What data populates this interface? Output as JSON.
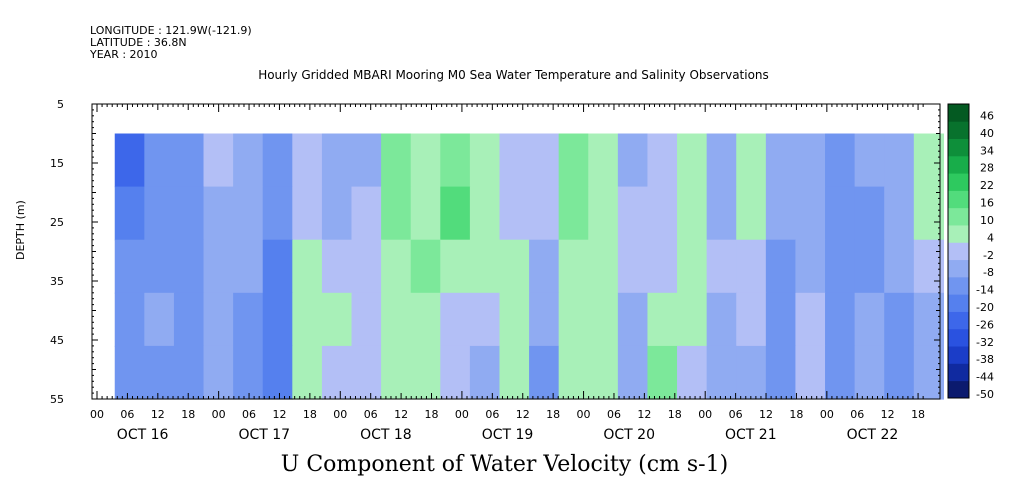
{
  "header": {
    "longitude": "LONGITUDE : 121.9W(-121.9)",
    "latitude": "LATITUDE : 36.8N",
    "year": "YEAR : 2010",
    "title": "Hourly Gridded MBARI Mooring M0 Sea Water Temperature and Salinity Observations"
  },
  "footer": {
    "variable_title": "U Component of Water Velocity (cm s-1)"
  },
  "chart_data": {
    "type": "heatmap",
    "title": "Hourly Gridded MBARI Mooring M0 Sea Water Temperature and Salinity Observations",
    "variable": "U Component of Water Velocity (cm s-1)",
    "ylabel": "DEPTH (m)",
    "y_inverted": true,
    "ylim": [
      5,
      55
    ],
    "y_ticks": [
      5,
      15,
      25,
      35,
      45,
      55
    ],
    "data_depth_range": [
      10,
      55
    ],
    "x_range_hours": [
      0,
      167
    ],
    "x_hour_ticks": [
      "00",
      "06",
      "12",
      "18",
      "00",
      "06",
      "12",
      "18",
      "00",
      "06",
      "12",
      "18",
      "00",
      "06",
      "12",
      "18",
      "00",
      "06",
      "12",
      "18",
      "00",
      "06",
      "12",
      "18",
      "00",
      "06",
      "12",
      "18"
    ],
    "x_day_labels": [
      "OCT 16",
      "OCT 17",
      "OCT 18",
      "OCT 19",
      "OCT 20",
      "OCT 21",
      "OCT 22"
    ],
    "colorbar": {
      "levels": [
        -50,
        -44,
        -38,
        -32,
        -26,
        -20,
        -14,
        -8,
        -2,
        4,
        10,
        16,
        22,
        28,
        34,
        40,
        46
      ],
      "tick_labels": [
        "46",
        "40",
        "34",
        "28",
        "22",
        "16",
        "10",
        "4",
        "-2",
        "-8",
        "-14",
        "-20",
        "-26",
        "-32",
        "-38",
        "-44",
        "-50"
      ],
      "colors": [
        "#0b1a6e",
        "#102aa0",
        "#1b3dc8",
        "#2a52e0",
        "#3d67ea",
        "#5580ee",
        "#7095f0",
        "#90abf2",
        "#b3bff6",
        "#a8f0b8",
        "#7ce89a",
        "#52dc7c",
        "#2ec95f",
        "#18ad4a",
        "#0e8f3a",
        "#08722d",
        "#045a22"
      ]
    },
    "pattern_sample": {
      "depth_rows_m": [
        12,
        22,
        32,
        42,
        52
      ],
      "time_hours": [
        3,
        9,
        15,
        21,
        27,
        33,
        39,
        45,
        51,
        57,
        63,
        69,
        75,
        81,
        87,
        93,
        99,
        105,
        111,
        117,
        123,
        129,
        135,
        141,
        147,
        153,
        159,
        165
      ],
      "u_cm_s": [
        [
          -24,
          -14,
          -12,
          -2,
          -6,
          -14,
          2,
          -4,
          -4,
          10,
          6,
          12,
          6,
          2,
          -2,
          12,
          8,
          -4,
          2,
          8,
          -6,
          6,
          -6,
          -4,
          -12,
          -8,
          -6,
          8
        ],
        [
          -18,
          -12,
          -10,
          -4,
          -4,
          -12,
          -2,
          -4,
          -2,
          10,
          8,
          18,
          8,
          2,
          -2,
          10,
          6,
          -2,
          2,
          8,
          -6,
          4,
          -8,
          -4,
          -14,
          -10,
          -6,
          4
        ],
        [
          -14,
          -10,
          -10,
          -6,
          -8,
          -16,
          4,
          2,
          0,
          6,
          10,
          4,
          4,
          6,
          -4,
          6,
          4,
          -2,
          0,
          4,
          -2,
          2,
          -10,
          -4,
          -12,
          -10,
          -8,
          -2
        ],
        [
          -12,
          -8,
          -12,
          -8,
          -10,
          -18,
          6,
          4,
          -2,
          6,
          8,
          2,
          -2,
          6,
          -8,
          4,
          4,
          -4,
          6,
          4,
          -4,
          -2,
          -10,
          0,
          -12,
          -8,
          -10,
          -4
        ],
        [
          -10,
          -10,
          -14,
          -8,
          -10,
          -18,
          4,
          2,
          2,
          8,
          6,
          -2,
          -6,
          8,
          -10,
          6,
          6,
          -6,
          10,
          2,
          -6,
          -4,
          -12,
          2,
          -10,
          -4,
          -10,
          -8
        ]
      ]
    }
  }
}
